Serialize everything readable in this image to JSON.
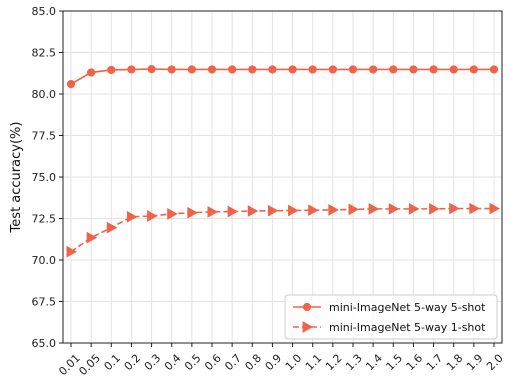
{
  "chart_data": {
    "type": "line",
    "xlabel": "",
    "ylabel": "Test accuracy(%)",
    "ylim": [
      65.0,
      85.0
    ],
    "yticks": [
      "65.0",
      "67.5",
      "70.0",
      "72.5",
      "75.0",
      "77.5",
      "80.0",
      "82.5",
      "85.0"
    ],
    "categories": [
      "0.01",
      "0.05",
      "0.1",
      "0.2",
      "0.3",
      "0.4",
      "0.5",
      "0.6",
      "0.7",
      "0.8",
      "0.9",
      "1.0",
      "1.1",
      "1.2",
      "1.3",
      "1.4",
      "1.5",
      "1.6",
      "1.7",
      "1.8",
      "1.9",
      "2.0"
    ],
    "grid": true,
    "legend_position": "bottom-right",
    "series": [
      {
        "name": "mini-ImageNet 5-way 5-shot",
        "color": "#f0634a",
        "marker": "circle",
        "linestyle": "solid",
        "values": [
          80.6,
          81.3,
          81.45,
          81.48,
          81.5,
          81.48,
          81.48,
          81.48,
          81.48,
          81.48,
          81.48,
          81.48,
          81.48,
          81.48,
          81.48,
          81.48,
          81.48,
          81.48,
          81.48,
          81.48,
          81.48,
          81.48
        ]
      },
      {
        "name": "mini-ImageNet 5-way 1-shot",
        "color": "#f0634a",
        "marker": "triangle-right",
        "linestyle": "dashed",
        "values": [
          70.5,
          71.35,
          71.95,
          72.6,
          72.65,
          72.78,
          72.85,
          72.9,
          72.92,
          72.95,
          72.97,
          72.98,
          73.0,
          73.02,
          73.05,
          73.08,
          73.08,
          73.08,
          73.08,
          73.1,
          73.1,
          73.1
        ]
      }
    ]
  }
}
